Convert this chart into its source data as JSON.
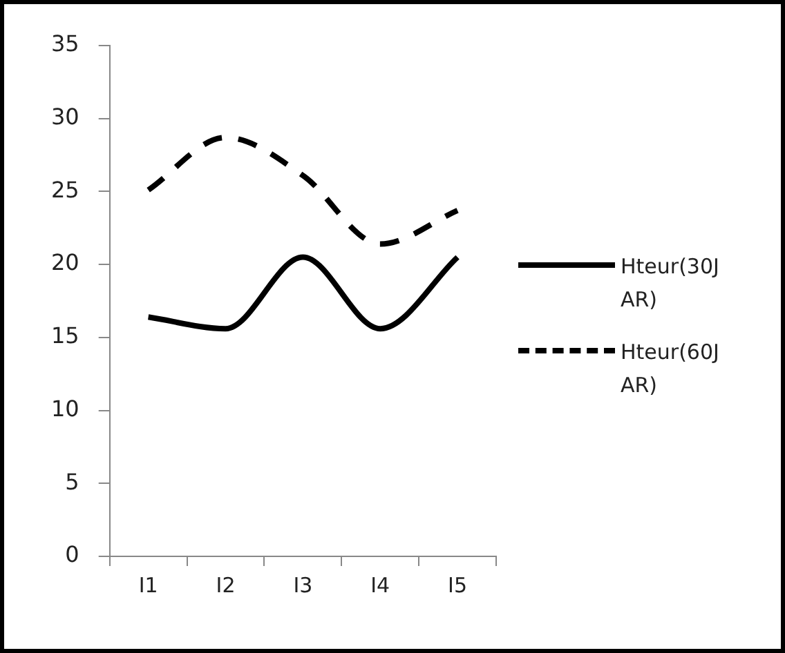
{
  "chart_data": {
    "type": "line",
    "categories": [
      "I1",
      "I2",
      "I3",
      "I4",
      "I5"
    ],
    "series": [
      {
        "name": "Hteur(30J AR)",
        "color": "#000000",
        "line_style": "solid",
        "values": [
          16.4,
          15.6,
          20.5,
          15.6,
          20.5
        ]
      },
      {
        "name": "Hteur(60J AR)",
        "color": "#000000",
        "line_style": "dashed",
        "values": [
          25.1,
          28.7,
          26.1,
          21.4,
          23.7
        ]
      }
    ],
    "ylim": [
      0,
      35
    ],
    "yticks": [
      0,
      5,
      10,
      15,
      20,
      25,
      30,
      35
    ],
    "grid": false,
    "legend": "right",
    "marker": "none"
  }
}
